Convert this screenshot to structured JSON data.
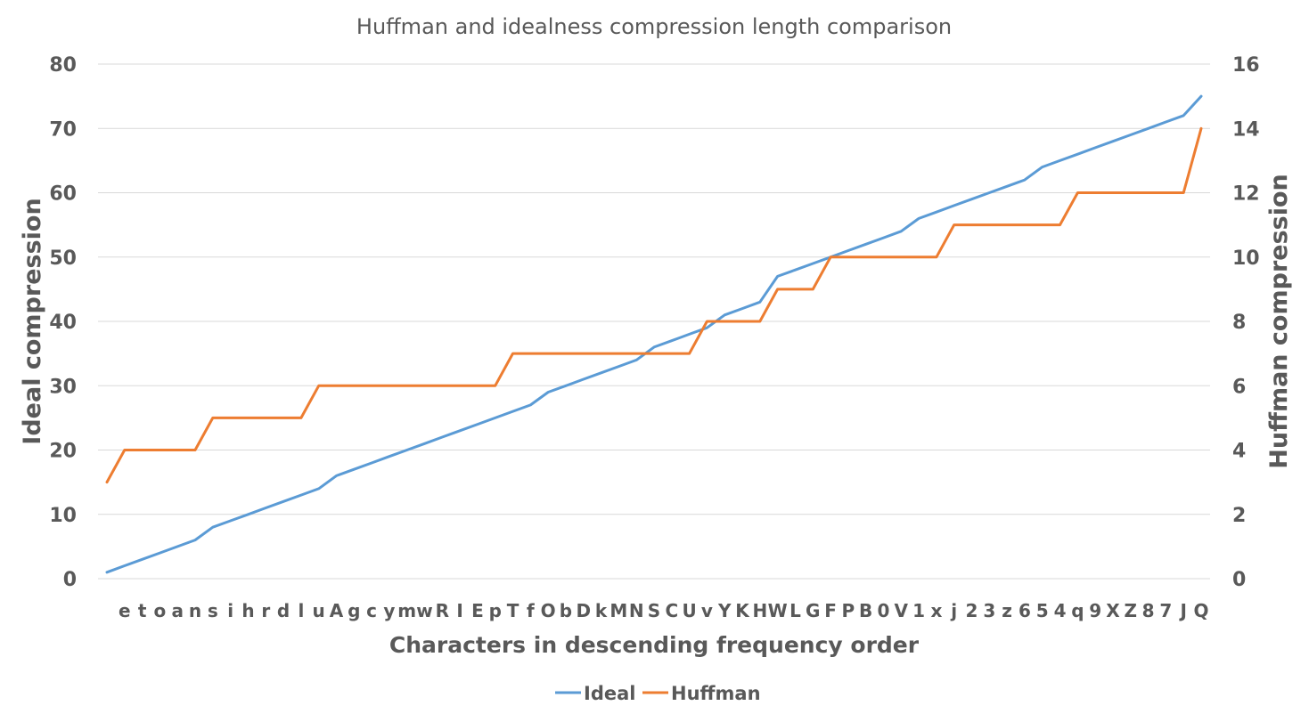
{
  "chart_data": {
    "type": "line",
    "title": "Huffman and idealness compression length comparison",
    "xlabel": "Characters in descending frequency order",
    "ylabel": "Ideal compression",
    "y2label": "Huffman compression",
    "categories": [
      "",
      "e",
      "t",
      "o",
      "a",
      "n",
      "s",
      "i",
      "h",
      "r",
      "d",
      "l",
      "u",
      "A",
      "g",
      "c",
      "y",
      "m",
      "w",
      "R",
      "I",
      "E",
      "p",
      "T",
      "f",
      "O",
      "b",
      "D",
      "k",
      "M",
      "N",
      "S",
      "C",
      "U",
      "v",
      "Y",
      "K",
      "H",
      "W",
      "L",
      "G",
      "F",
      "P",
      "B",
      "0",
      "V",
      "1",
      "x",
      "j",
      "2",
      "3",
      "z",
      "6",
      "5",
      "4",
      "q",
      "9",
      "X",
      "Z",
      "8",
      "7",
      "J",
      "Q"
    ],
    "series": [
      {
        "name": "Ideal",
        "axis": "left",
        "color": "#5b9bd5",
        "values": [
          1,
          2,
          3,
          4,
          5,
          6,
          8,
          9,
          10,
          11,
          12,
          13,
          14,
          16,
          17,
          18,
          19,
          20,
          21,
          22,
          23,
          24,
          25,
          26,
          27,
          29,
          30,
          31,
          32,
          33,
          34,
          36,
          37,
          38,
          39,
          41,
          42,
          43,
          47,
          48,
          49,
          50,
          51,
          52,
          53,
          54,
          56,
          57,
          58,
          59,
          60,
          61,
          62,
          64,
          65,
          66,
          67,
          68,
          69,
          70,
          71,
          72,
          75
        ]
      },
      {
        "name": "Huffman",
        "axis": "right",
        "color": "#ed7d31",
        "values": [
          3,
          4,
          4,
          4,
          4,
          4,
          5,
          5,
          5,
          5,
          5,
          5,
          6,
          6,
          6,
          6,
          6,
          6,
          6,
          6,
          6,
          6,
          6,
          7,
          7,
          7,
          7,
          7,
          7,
          7,
          7,
          7,
          7,
          7,
          8,
          8,
          8,
          8,
          9,
          9,
          9,
          10,
          10,
          10,
          10,
          10,
          10,
          10,
          11,
          11,
          11,
          11,
          11,
          11,
          11,
          12,
          12,
          12,
          12,
          12,
          12,
          12,
          14
        ]
      }
    ],
    "ylim": [
      0,
      80
    ],
    "yticks": [
      "0",
      "10",
      "20",
      "30",
      "40",
      "50",
      "60",
      "70",
      "80"
    ],
    "y2lim": [
      0,
      16
    ],
    "y2ticks": [
      "0",
      "2",
      "4",
      "6",
      "8",
      "10",
      "12",
      "14",
      "16"
    ],
    "grid": true,
    "legend": "bottom-center"
  },
  "colors": {
    "ideal": "#5b9bd5",
    "huffman": "#ed7d31",
    "grid": "#d9d9d9",
    "text": "#595959"
  }
}
